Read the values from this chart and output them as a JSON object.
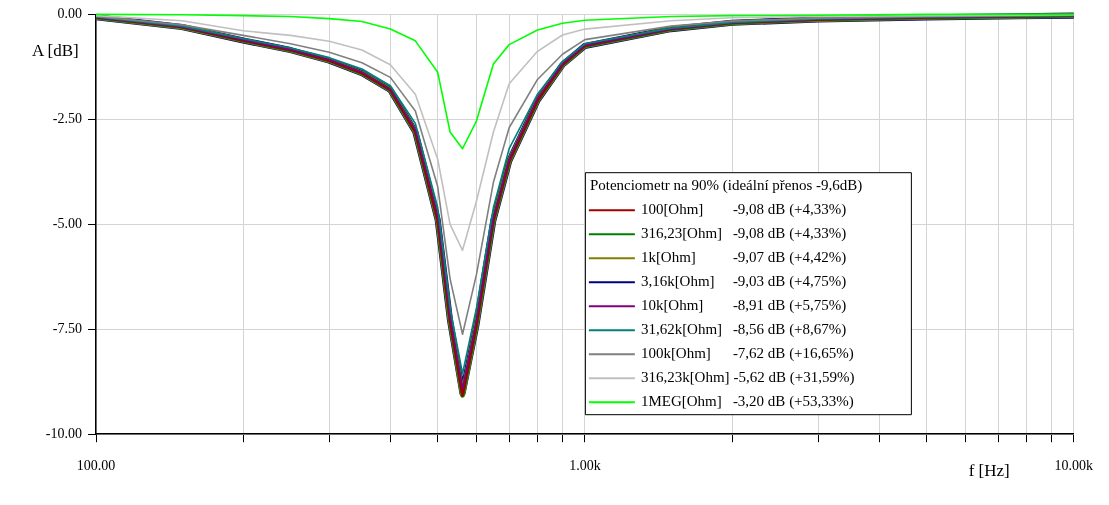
{
  "chart_data": {
    "type": "line",
    "xlabel": "f [Hz]",
    "ylabel": "A [dB]",
    "legend_title": "Potenciometr na 90% (ideální přenos -9,6dB)",
    "x": [
      100,
      150,
      200,
      250,
      300,
      350,
      400,
      450,
      500,
      530,
      562,
      600,
      650,
      700,
      800,
      900,
      1000,
      1500,
      2000,
      3000,
      5000,
      10000
    ],
    "series": [
      {
        "name": "100[Ohm]   -9,08 dB (+4,33%)",
        "color": "#a00000",
        "values": [
          -0.07,
          -0.3,
          -0.62,
          -0.85,
          -1.1,
          -1.4,
          -1.8,
          -2.8,
          -4.9,
          -7.3,
          -9.08,
          -7.4,
          -4.9,
          -3.5,
          -2.05,
          -1.2,
          -0.75,
          -0.35,
          -0.2,
          -0.12,
          -0.07,
          -0.03
        ]
      },
      {
        "name": "316,23[Ohm] -9,08 dB (+4,33%)",
        "color": "#008000",
        "values": [
          -0.07,
          -0.3,
          -0.62,
          -0.85,
          -1.1,
          -1.4,
          -1.8,
          -2.8,
          -4.9,
          -7.3,
          -9.08,
          -7.4,
          -4.9,
          -3.5,
          -2.05,
          -1.2,
          -0.75,
          -0.35,
          -0.2,
          -0.12,
          -0.07,
          -0.03
        ]
      },
      {
        "name": "1k[Ohm]   -9,07 dB (+4,42%)",
        "color": "#808000",
        "values": [
          -0.07,
          -0.3,
          -0.62,
          -0.85,
          -1.1,
          -1.4,
          -1.8,
          -2.8,
          -4.9,
          -7.3,
          -9.07,
          -7.4,
          -4.9,
          -3.5,
          -2.05,
          -1.2,
          -0.75,
          -0.35,
          -0.2,
          -0.12,
          -0.07,
          -0.03
        ]
      },
      {
        "name": "3,16k[Ohm]   -9,03 dB (+4,75%)",
        "color": "#000080",
        "values": [
          -0.07,
          -0.3,
          -0.62,
          -0.85,
          -1.1,
          -1.4,
          -1.8,
          -2.8,
          -4.9,
          -7.3,
          -9.03,
          -7.4,
          -4.9,
          -3.5,
          -2.05,
          -1.2,
          -0.75,
          -0.35,
          -0.2,
          -0.12,
          -0.07,
          -0.03
        ]
      },
      {
        "name": "10k[Ohm]   -8,91 dB (+5,75%)",
        "color": "#800080",
        "values": [
          -0.07,
          -0.3,
          -0.61,
          -0.84,
          -1.08,
          -1.38,
          -1.78,
          -2.75,
          -4.8,
          -7.2,
          -8.91,
          -7.3,
          -4.85,
          -3.45,
          -2.0,
          -1.18,
          -0.74,
          -0.35,
          -0.2,
          -0.12,
          -0.07,
          -0.03
        ]
      },
      {
        "name": "31,62k[Ohm]   -8,56 dB (+8,67%)",
        "color": "#008080",
        "values": [
          -0.06,
          -0.28,
          -0.58,
          -0.8,
          -1.03,
          -1.3,
          -1.7,
          -2.6,
          -4.6,
          -7.0,
          -8.56,
          -7.0,
          -4.6,
          -3.2,
          -1.9,
          -1.12,
          -0.7,
          -0.33,
          -0.19,
          -0.11,
          -0.06,
          -0.03
        ]
      },
      {
        "name": "100k[Ohm]   -7,62 dB (+16,65%)",
        "color": "#808080",
        "values": [
          -0.05,
          -0.25,
          -0.5,
          -0.7,
          -0.9,
          -1.15,
          -1.5,
          -2.3,
          -4.1,
          -6.3,
          -7.62,
          -6.2,
          -4.0,
          -2.7,
          -1.55,
          -0.95,
          -0.6,
          -0.28,
          -0.16,
          -0.09,
          -0.05,
          -0.02
        ]
      },
      {
        "name": "316,23k[Ohm] -5,62 dB (+31,59%)",
        "color": "#c0c0c0",
        "values": [
          -0.03,
          -0.15,
          -0.39,
          -0.5,
          -0.64,
          -0.85,
          -1.2,
          -1.9,
          -3.45,
          -5.0,
          -5.62,
          -4.45,
          -2.8,
          -1.65,
          -0.88,
          -0.49,
          -0.35,
          -0.15,
          -0.08,
          -0.05,
          -0.03,
          -0.01
        ]
      },
      {
        "name": "1MEG[Ohm]   -3,20 dB (+53,33%)",
        "color": "#00ff00",
        "values": [
          0,
          -0.01,
          -0.03,
          -0.05,
          -0.1,
          -0.17,
          -0.35,
          -0.63,
          -1.38,
          -2.8,
          -3.2,
          -2.54,
          -1.18,
          -0.72,
          -0.37,
          -0.21,
          -0.14,
          -0.05,
          -0.03,
          -0.02,
          0,
          0
        ]
      }
    ],
    "log": "x",
    "xlim": [
      100,
      10000
    ],
    "xticks": [
      {
        "value": 100,
        "label": "100.00"
      },
      {
        "value": 200,
        "label": null
      },
      {
        "value": 300,
        "label": null
      },
      {
        "value": 400,
        "label": null
      },
      {
        "value": 500,
        "label": null
      },
      {
        "value": 600,
        "label": null
      },
      {
        "value": 700,
        "label": null
      },
      {
        "value": 800,
        "label": null
      },
      {
        "value": 900,
        "label": null
      },
      {
        "value": 1000,
        "label": "1.00k"
      },
      {
        "value": 2000,
        "label": null
      },
      {
        "value": 3000,
        "label": null
      },
      {
        "value": 4000,
        "label": null
      },
      {
        "value": 5000,
        "label": null
      },
      {
        "value": 6000,
        "label": null
      },
      {
        "value": 7000,
        "label": null
      },
      {
        "value": 8000,
        "label": null
      },
      {
        "value": 9000,
        "label": null
      },
      {
        "value": 10000,
        "label": "10.00k"
      }
    ],
    "ylim": [
      -10,
      0
    ],
    "yticks": [
      {
        "value": -10,
        "label": "-10.00"
      },
      {
        "value": -7.5,
        "label": "-7.50"
      },
      {
        "value": -5,
        "label": "-5.00"
      },
      {
        "value": -2.5,
        "label": "-2.50"
      },
      {
        "value": 0,
        "label": "0.00"
      }
    ],
    "grid": true,
    "legend": "bottom right",
    "marker": "none",
    "line_style": "solid"
  }
}
